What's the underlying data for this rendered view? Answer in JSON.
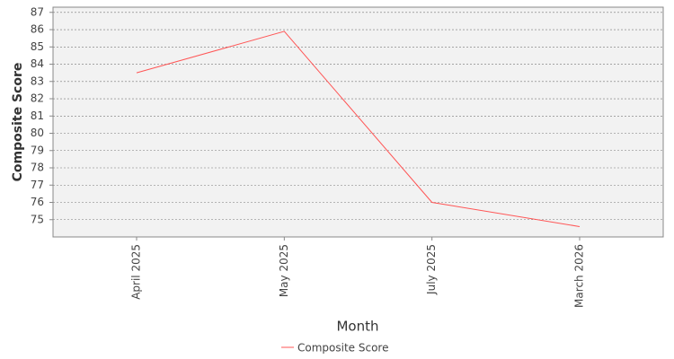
{
  "chart_data": {
    "type": "line",
    "x_label": "Month",
    "y_label": "Composite Score",
    "categories": [
      "April 2025",
      "May 2025",
      "July 2025",
      "March 2026"
    ],
    "series": [
      {
        "name": "Composite Score",
        "color": "#ff5555",
        "values": [
          83.5,
          85.9,
          76.0,
          74.6
        ]
      }
    ],
    "ylim": [
      74,
      87.3
    ],
    "yticks": [
      75,
      76,
      77,
      78,
      79,
      80,
      81,
      82,
      83,
      84,
      85,
      86,
      87
    ],
    "grid": true,
    "legend": "bottom"
  }
}
